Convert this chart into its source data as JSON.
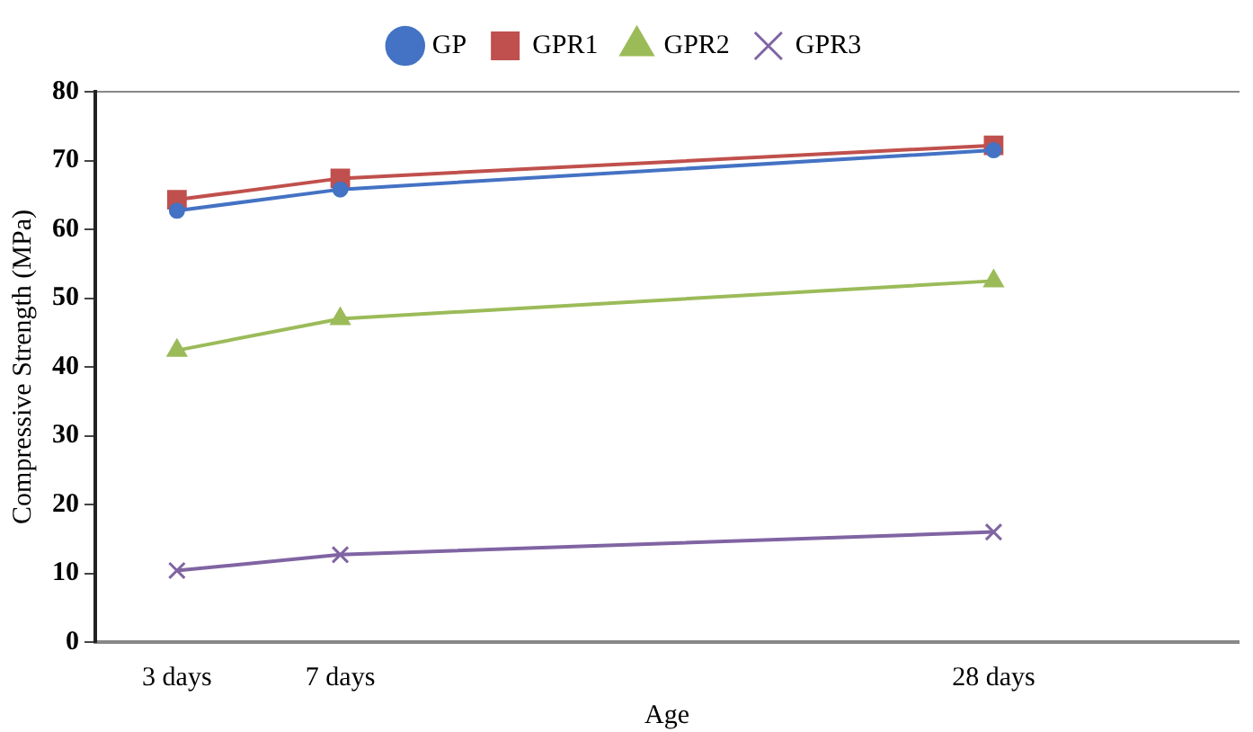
{
  "chart_data": {
    "type": "line",
    "xlabel": "Age",
    "ylabel": "Compressive Strength (MPa)",
    "categories": [
      "3 days",
      "7 days",
      null,
      null,
      null,
      "28 days",
      null
    ],
    "ylim": [
      0,
      80
    ],
    "yticks": [
      0,
      10,
      20,
      30,
      40,
      50,
      60,
      70,
      80
    ],
    "grid": false,
    "legend": "top",
    "series": [
      {
        "name": "GP",
        "color": "#4472c4",
        "marker": "circle",
        "values": [
          62.7,
          65.8,
          null,
          null,
          null,
          71.5,
          null
        ]
      },
      {
        "name": "GPR1",
        "color": "#c0504d",
        "marker": "square",
        "values": [
          64.3,
          67.4,
          null,
          null,
          null,
          72.2,
          null
        ]
      },
      {
        "name": "GPR2",
        "color": "#9bbb59",
        "marker": "triangle",
        "values": [
          42.4,
          47.0,
          null,
          null,
          null,
          52.5,
          null
        ]
      },
      {
        "name": "GPR3",
        "color": "#8064a2",
        "marker": "cross",
        "values": [
          10.4,
          12.7,
          null,
          null,
          null,
          16.0,
          null
        ]
      }
    ]
  }
}
